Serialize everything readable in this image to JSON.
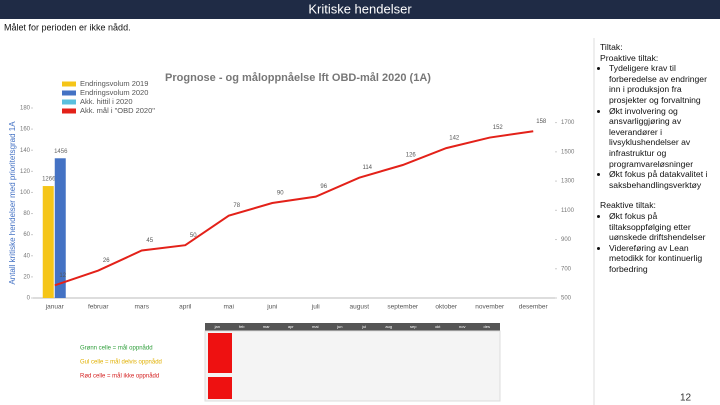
{
  "header": {
    "title": "Kritiske hendelser",
    "subtitle": "Målet for perioden er ikke nådd."
  },
  "chart_data": {
    "type": "combo",
    "title": "Prognose - og måloppnåelse lft OBD-mål 2020 (1A)",
    "y_label": "Antall kritiske hendelser med prioritetsgrad 1A",
    "categories": [
      "januar",
      "februar",
      "mars",
      "april",
      "mai",
      "juni",
      "juli",
      "august",
      "september",
      "oktober",
      "november",
      "desember"
    ],
    "series": [
      {
        "name": "Endringsvolum 2019",
        "color": "#f5c518",
        "kind": "bar",
        "axis": "y2",
        "values": [
          1266,
          null,
          null,
          null,
          null,
          null,
          null,
          null,
          null,
          null,
          null,
          null
        ]
      },
      {
        "name": "Endringsvolum 2020",
        "color": "#4472c4",
        "kind": "bar",
        "axis": "y2",
        "values": [
          1456,
          null,
          null,
          null,
          null,
          null,
          null,
          null,
          null,
          null,
          null,
          null
        ]
      },
      {
        "name": "Akk. hittil i 2020",
        "color": "#5bc0de",
        "kind": "line",
        "values": [
          null,
          null,
          null,
          null,
          null,
          null,
          null,
          null,
          null,
          null,
          null,
          null
        ]
      },
      {
        "name": "Akk. mål i \"OBD 2020\"",
        "color": "#e32119",
        "kind": "line",
        "values": [
          12,
          26,
          45,
          50,
          78,
          90,
          96,
          114,
          126,
          142,
          152,
          158
        ]
      }
    ],
    "ylim": [
      0,
      180
    ],
    "yticks": [
      0,
      20,
      40,
      60,
      80,
      100,
      120,
      140,
      160,
      180
    ],
    "y2lim": [
      500,
      1800
    ],
    "y2ticks": [
      500,
      700,
      900,
      1100,
      1300,
      1500,
      1700
    ]
  },
  "table": {
    "legend": [
      {
        "text": "Grønn celle = mål oppnådd",
        "color": "#2e9e3a"
      },
      {
        "text": "Gul celle = mål delvis oppnådd",
        "color": "#e0b000"
      },
      {
        "text": "Rød celle = mål ikke oppnådd",
        "color": "#d42020"
      }
    ],
    "columns": [
      "jan",
      "feb",
      "mar",
      "apr",
      "mai",
      "jun",
      "jul",
      "aug",
      "sep",
      "okt",
      "nov",
      "des"
    ]
  },
  "panel": {
    "heading": "Tiltak:",
    "sections": [
      {
        "title": "Proaktive tiltak:",
        "items": [
          "Tydeligere krav til forberedelse av endringer inn i produksjon fra prosjekter og forvaltning",
          "Økt involvering og ansvarliggjøring av leverandører i livsyklushendelser av infrastruktur og programvareløsninger",
          "Økt fokus på datakvalitet i saksbehandlingsverktøy"
        ]
      },
      {
        "title": "Reaktive tiltak:",
        "items": [
          "Økt fokus på tiltaksoppfølging etter uønskede driftshendelser",
          "Videreføring av Lean metodikk for kontinuerlig forbedring"
        ]
      }
    ]
  },
  "page_number": "12"
}
